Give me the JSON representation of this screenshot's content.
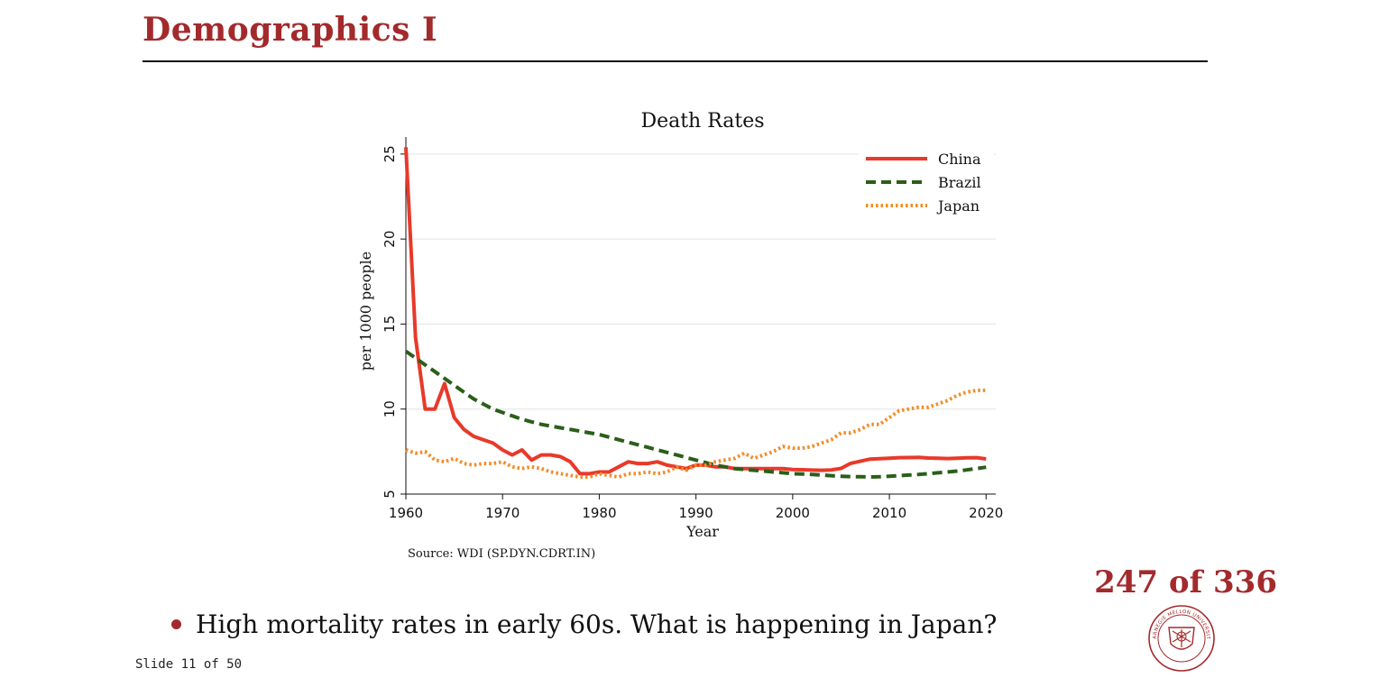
{
  "slide": {
    "title": "Demographics I",
    "page_counter": "247 of 336",
    "bullet": "High mortality rates in early 60s. What is happening in Japan?",
    "slide_number": "Slide 11 of 50",
    "accent_color": "#a32a2c"
  },
  "logo": {
    "name": "carnegie-mellon-seal",
    "text": "CARNEGIE MELLON UNIVERSITY"
  },
  "chart_data": {
    "type": "line",
    "title": "Death Rates",
    "xlabel": "Year",
    "ylabel": "per 1000 people",
    "source": "Source: WDI (SP.DYN.CDRT.IN)",
    "xlim": [
      1960,
      2021
    ],
    "ylim": [
      5,
      26
    ],
    "xticks": [
      1960,
      1970,
      1980,
      1990,
      2000,
      2010,
      2020
    ],
    "yticks": [
      5,
      10,
      15,
      20,
      25
    ],
    "grid": true,
    "legend_position": "top-right",
    "x": [
      1960,
      1961,
      1962,
      1963,
      1964,
      1965,
      1966,
      1967,
      1968,
      1969,
      1970,
      1971,
      1972,
      1973,
      1974,
      1975,
      1976,
      1977,
      1978,
      1979,
      1980,
      1981,
      1982,
      1983,
      1984,
      1985,
      1986,
      1987,
      1988,
      1989,
      1990,
      1991,
      1992,
      1993,
      1994,
      1995,
      1996,
      1997,
      1998,
      1999,
      2000,
      2001,
      2002,
      2003,
      2004,
      2005,
      2006,
      2007,
      2008,
      2009,
      2010,
      2011,
      2012,
      2013,
      2014,
      2015,
      2016,
      2017,
      2018,
      2019,
      2020
    ],
    "series": [
      {
        "name": "China",
        "color": "#e8392a",
        "style": "solid",
        "values": [
          25.4,
          14.2,
          10.0,
          10.0,
          11.5,
          9.5,
          8.8,
          8.4,
          8.2,
          8.0,
          7.6,
          7.3,
          7.6,
          7.0,
          7.3,
          7.3,
          7.2,
          6.9,
          6.2,
          6.2,
          6.3,
          6.3,
          6.6,
          6.9,
          6.8,
          6.8,
          6.9,
          6.7,
          6.6,
          6.5,
          6.7,
          6.7,
          6.6,
          6.6,
          6.5,
          6.5,
          6.5,
          6.5,
          6.5,
          6.5,
          6.45,
          6.43,
          6.41,
          6.4,
          6.42,
          6.51,
          6.81,
          6.93,
          7.06,
          7.08,
          7.11,
          7.14,
          7.15,
          7.16,
          7.12,
          7.11,
          7.09,
          7.11,
          7.13,
          7.14,
          7.07
        ]
      },
      {
        "name": "Brazil",
        "color": "#2b5e1a",
        "style": "dashed",
        "values": [
          13.4,
          13.0,
          12.6,
          12.2,
          11.8,
          11.4,
          11.0,
          10.6,
          10.3,
          10.0,
          9.8,
          9.6,
          9.4,
          9.25,
          9.1,
          9.0,
          8.9,
          8.8,
          8.7,
          8.6,
          8.5,
          8.35,
          8.2,
          8.05,
          7.9,
          7.75,
          7.6,
          7.45,
          7.3,
          7.15,
          7.0,
          6.85,
          6.7,
          6.6,
          6.5,
          6.45,
          6.4,
          6.35,
          6.3,
          6.25,
          6.2,
          6.18,
          6.15,
          6.12,
          6.08,
          6.05,
          6.03,
          6.02,
          6.01,
          6.02,
          6.05,
          6.08,
          6.12,
          6.15,
          6.2,
          6.25,
          6.3,
          6.35,
          6.42,
          6.5,
          6.58
        ]
      },
      {
        "name": "Japan",
        "color": "#f28c28",
        "style": "dotted",
        "values": [
          7.6,
          7.4,
          7.5,
          7.0,
          6.9,
          7.1,
          6.8,
          6.7,
          6.8,
          6.8,
          6.9,
          6.6,
          6.5,
          6.6,
          6.5,
          6.3,
          6.2,
          6.1,
          6.0,
          6.0,
          6.2,
          6.1,
          6.0,
          6.2,
          6.2,
          6.3,
          6.2,
          6.3,
          6.6,
          6.4,
          6.7,
          6.7,
          6.9,
          7.0,
          7.1,
          7.4,
          7.1,
          7.3,
          7.5,
          7.8,
          7.7,
          7.7,
          7.8,
          8.0,
          8.2,
          8.6,
          8.6,
          8.8,
          9.1,
          9.1,
          9.5,
          9.9,
          10.0,
          10.1,
          10.1,
          10.3,
          10.5,
          10.8,
          11.0,
          11.1,
          11.1
        ]
      }
    ]
  }
}
